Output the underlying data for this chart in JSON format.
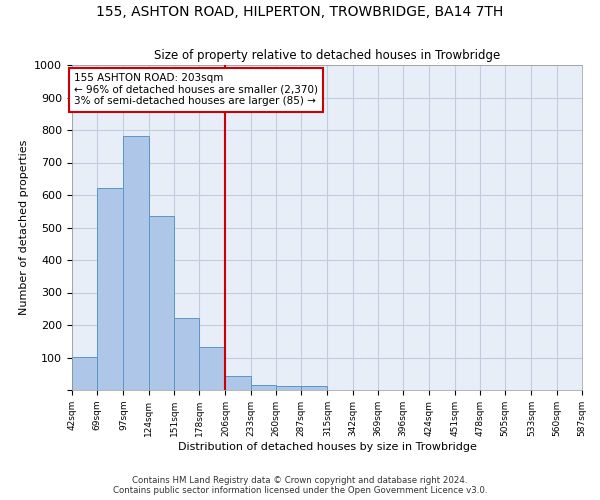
{
  "title1": "155, ASHTON ROAD, HILPERTON, TROWBRIDGE, BA14 7TH",
  "title2": "Size of property relative to detached houses in Trowbridge",
  "xlabel": "Distribution of detached houses by size in Trowbridge",
  "ylabel": "Number of detached properties",
  "footer1": "Contains HM Land Registry data © Crown copyright and database right 2024.",
  "footer2": "Contains public sector information licensed under the Open Government Licence v3.0.",
  "annotation_title": "155 ASHTON ROAD: 203sqm",
  "annotation_line1": "← 96% of detached houses are smaller (2,370)",
  "annotation_line2": "3% of semi-detached houses are larger (85) →",
  "property_size": 203,
  "bin_edges": [
    42,
    69,
    97,
    124,
    151,
    178,
    206,
    233,
    260,
    287,
    315,
    342,
    369,
    396,
    424,
    451,
    478,
    505,
    533,
    560,
    587
  ],
  "bar_heights": [
    103,
    623,
    783,
    535,
    222,
    133,
    42,
    16,
    12,
    12,
    0,
    0,
    0,
    0,
    0,
    0,
    0,
    0,
    0,
    0
  ],
  "bar_color": "#aec6e8",
  "bar_edge_color": "#5a96c8",
  "vline_color": "#cc0000",
  "vline_x": 206,
  "box_color": "#cc0000",
  "background_color": "#e8eef8",
  "grid_color": "#c0cce0",
  "ylim": [
    0,
    1000
  ],
  "yticks": [
    0,
    100,
    200,
    300,
    400,
    500,
    600,
    700,
    800,
    900,
    1000
  ]
}
